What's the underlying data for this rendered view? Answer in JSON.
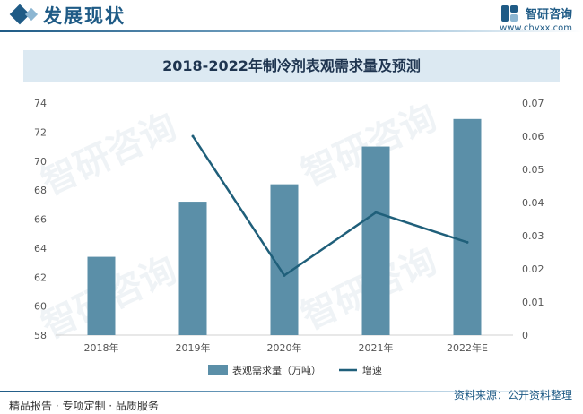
{
  "header": {
    "title": "发展现状",
    "brand_name": "智研咨询",
    "brand_url": "www.chyxx.com"
  },
  "watermark_text": "智研咨询",
  "chart_data": {
    "type": "bar",
    "title": "2018-2022年制冷剂表观需求量及预测",
    "categories": [
      "2018年",
      "2019年",
      "2020年",
      "2021年",
      "2022年E"
    ],
    "series": [
      {
        "name": "表观需求量（万吨）",
        "type": "bar",
        "axis": "left",
        "values": [
          63.4,
          67.2,
          68.4,
          71.0,
          72.9
        ],
        "color": "#5b8fa8"
      },
      {
        "name": "增速",
        "type": "line",
        "axis": "right",
        "values": [
          null,
          0.06,
          0.018,
          0.037,
          0.028
        ],
        "color": "#1f5f7a"
      }
    ],
    "y_left": {
      "min": 58,
      "max": 74,
      "ticks": [
        "58",
        "60",
        "62",
        "64",
        "66",
        "68",
        "70",
        "72",
        "74"
      ]
    },
    "y_right": {
      "min": 0,
      "max": 0.07,
      "ticks": [
        "0",
        "0.01",
        "0.02",
        "0.03",
        "0.04",
        "0.05",
        "0.06",
        "0.07"
      ]
    },
    "grid": false,
    "legend_position": "bottom"
  },
  "footer": {
    "left": "精品报告 · 专项定制 · 品质服务",
    "source": "资料来源：公开资料整理"
  }
}
